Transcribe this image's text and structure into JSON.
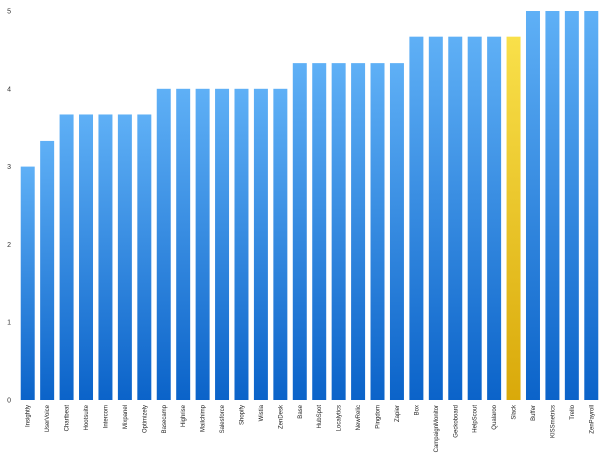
{
  "chart_data": {
    "type": "bar",
    "title": "",
    "xlabel": "",
    "ylabel": "",
    "ylim": [
      0,
      5
    ],
    "yticks": [
      0,
      1,
      2,
      3,
      4,
      5
    ],
    "grid": false,
    "categories": [
      "Insightly",
      "UserVoice",
      "Chartbeat",
      "Hootsuite",
      "Intercom",
      "Mixpanel",
      "Optimizely",
      "Basecamp",
      "Highrise",
      "Mailchimp",
      "Salesforce",
      "Shopify",
      "Wistia",
      "ZenDesk",
      "Base",
      "HubSpot",
      "Localytics",
      "NewRelic",
      "Pingdom",
      "Zapier",
      "Box",
      "CampaignMonitor",
      "Geckoboard",
      "HelpScout",
      "Qualaroo",
      "Slack",
      "Buffer",
      "KISSmetrics",
      "Trello",
      "ZenPayroll"
    ],
    "values": [
      3.0,
      3.33,
      3.67,
      3.67,
      3.67,
      3.67,
      3.67,
      4.0,
      4.0,
      4.0,
      4.0,
      4.0,
      4.0,
      4.0,
      4.33,
      4.33,
      4.33,
      4.33,
      4.33,
      4.33,
      4.67,
      4.67,
      4.67,
      4.67,
      4.67,
      4.67,
      5.0,
      5.0,
      5.0,
      5.0
    ],
    "highlight": "Slack",
    "colors": {
      "bar_top": "#5fb0f6",
      "bar_bottom": "#0b63c9",
      "highlight_top": "#f9e04a",
      "highlight_bottom": "#d9a90a"
    }
  }
}
